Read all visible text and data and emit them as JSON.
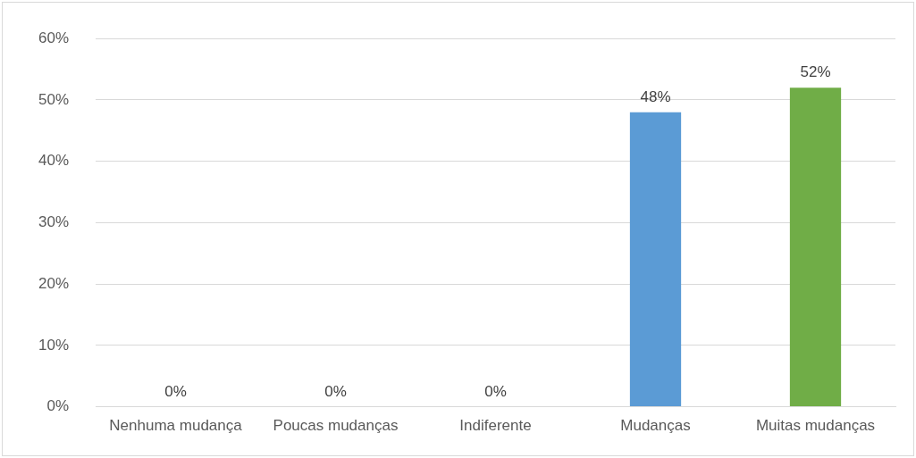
{
  "chart_data": {
    "type": "bar",
    "categories": [
      "Nenhuma mudança",
      "Poucas mudanças",
      "Indiferente",
      "Mudanças",
      "Muitas mudanças"
    ],
    "values": [
      0,
      0,
      0,
      48,
      52
    ],
    "colors": [
      "#5b9bd5",
      "#5b9bd5",
      "#5b9bd5",
      "#5b9bd5",
      "#70ad47"
    ],
    "value_labels": [
      "0%",
      "0%",
      "0%",
      "48%",
      "52%"
    ],
    "ylim": [
      0,
      60
    ],
    "yticks": [
      {
        "value": 0,
        "label": "0%"
      },
      {
        "value": 10,
        "label": "10%"
      },
      {
        "value": 20,
        "label": "20%"
      },
      {
        "value": 30,
        "label": "30%"
      },
      {
        "value": 40,
        "label": "40%"
      },
      {
        "value": 50,
        "label": "50%"
      },
      {
        "value": 60,
        "label": "60%"
      }
    ],
    "grid": "y",
    "legend": false
  }
}
